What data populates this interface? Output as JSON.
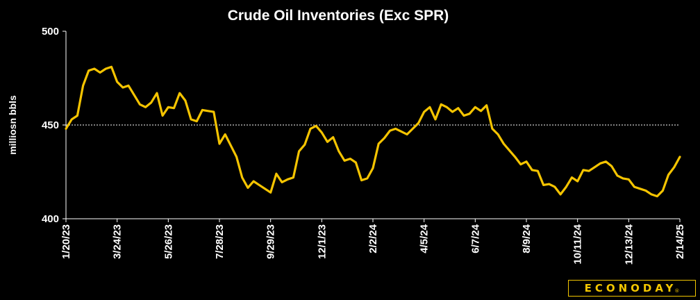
{
  "chart_data": {
    "type": "line",
    "title": "Crude Oil Inventories (Exc SPR)",
    "xlabel": "",
    "ylabel": "milliosn bbls",
    "ylim": [
      400,
      500
    ],
    "yticks": [
      400,
      450,
      500
    ],
    "reference_line": 450,
    "x_tick_labels": [
      "1/20/23",
      "3/24/23",
      "5/26/23",
      "7/28/23",
      "9/29/23",
      "12/1/23",
      "2/2/24",
      "4/5/24",
      "6/7/24",
      "8/9/24",
      "10/11/24",
      "12/13/24",
      "2/14/25"
    ],
    "x": [
      "1/20/23",
      "1/27/23",
      "2/3/23",
      "2/10/23",
      "2/17/23",
      "2/24/23",
      "3/3/23",
      "3/10/23",
      "3/17/23",
      "3/24/23",
      "3/31/23",
      "4/7/23",
      "4/14/23",
      "4/21/23",
      "4/28/23",
      "5/5/23",
      "5/12/23",
      "5/19/23",
      "5/26/23",
      "6/2/23",
      "6/9/23",
      "6/16/23",
      "6/23/23",
      "6/30/23",
      "7/7/23",
      "7/14/23",
      "7/21/23",
      "7/28/23",
      "8/4/23",
      "8/11/23",
      "8/18/23",
      "8/25/23",
      "9/1/23",
      "9/8/23",
      "9/15/23",
      "9/22/23",
      "9/29/23",
      "10/6/23",
      "10/13/23",
      "10/20/23",
      "10/27/23",
      "11/3/23",
      "11/10/23",
      "11/17/23",
      "11/24/23",
      "12/1/23",
      "12/8/23",
      "12/15/23",
      "12/22/23",
      "12/29/23",
      "1/5/24",
      "1/12/24",
      "1/19/24",
      "1/26/24",
      "2/2/24",
      "2/9/24",
      "2/16/24",
      "2/23/24",
      "3/1/24",
      "3/8/24",
      "3/15/24",
      "3/22/24",
      "3/29/24",
      "4/5/24",
      "4/12/24",
      "4/19/24",
      "4/26/24",
      "5/3/24",
      "5/10/24",
      "5/17/24",
      "5/24/24",
      "5/31/24",
      "6/7/24",
      "6/14/24",
      "6/21/24",
      "6/28/24",
      "7/5/24",
      "7/12/24",
      "7/19/24",
      "7/26/24",
      "8/2/24",
      "8/9/24",
      "8/16/24",
      "8/23/24",
      "8/30/24",
      "9/6/24",
      "9/13/24",
      "9/20/24",
      "9/27/24",
      "10/4/24",
      "10/11/24",
      "10/18/24",
      "10/25/24",
      "11/1/24",
      "11/8/24",
      "11/15/24",
      "11/22/24",
      "11/29/24",
      "12/6/24",
      "12/13/24",
      "12/20/24",
      "12/27/24",
      "1/3/25",
      "1/10/25",
      "1/17/25",
      "1/24/25",
      "1/31/25",
      "2/7/25",
      "2/14/25"
    ],
    "series": [
      {
        "values": [
          448.0,
          453.0,
          455.0,
          471.0,
          479.0,
          480.0,
          478.0,
          480.0,
          481.0,
          473.0,
          470.0,
          471.0,
          466.0,
          461.0,
          459.5,
          462.0,
          467.0,
          455.0,
          459.5,
          459.0,
          467.0,
          463.0,
          453.0,
          452.0,
          458.0,
          457.5,
          457.0,
          440.0,
          445.0,
          439.0,
          433.0,
          422.0,
          416.5,
          420.0,
          418.0,
          416.0,
          414.0,
          424.0,
          419.5,
          421.0,
          422.0,
          436.0,
          439.5,
          448.0,
          449.5,
          446.0,
          441.0,
          443.5,
          436.0,
          431.0,
          432.0,
          430.0,
          420.5,
          421.5,
          427.0,
          440.0,
          443.0,
          447.0,
          448.0,
          446.5,
          445.0,
          448.0,
          451.0,
          457.0,
          459.5,
          453.0,
          461.0,
          459.5,
          457.0,
          459.0,
          455.0,
          456.0,
          459.5,
          457.5,
          460.5,
          448.0,
          445.0,
          440.0,
          436.5,
          433.0,
          429.0,
          430.5,
          426.0,
          425.5,
          418.0,
          418.5,
          417.0,
          413.0,
          417.0,
          422.0,
          420.0,
          426.0,
          425.5,
          427.5,
          429.5,
          430.5,
          428.0,
          423.0,
          421.5,
          421.0,
          417.0,
          416.0,
          415.0,
          413.0,
          412.0,
          415.0,
          423.5,
          427.5,
          433.0
        ],
        "color": "#f5c400"
      }
    ],
    "colors": {
      "background": "#000000",
      "line": "#f5c400",
      "axis": "#ffffff",
      "reference": "#ffffff"
    }
  },
  "logo": {
    "text": "ECONODAY",
    "mark": "®",
    "color": "#f2c600"
  }
}
